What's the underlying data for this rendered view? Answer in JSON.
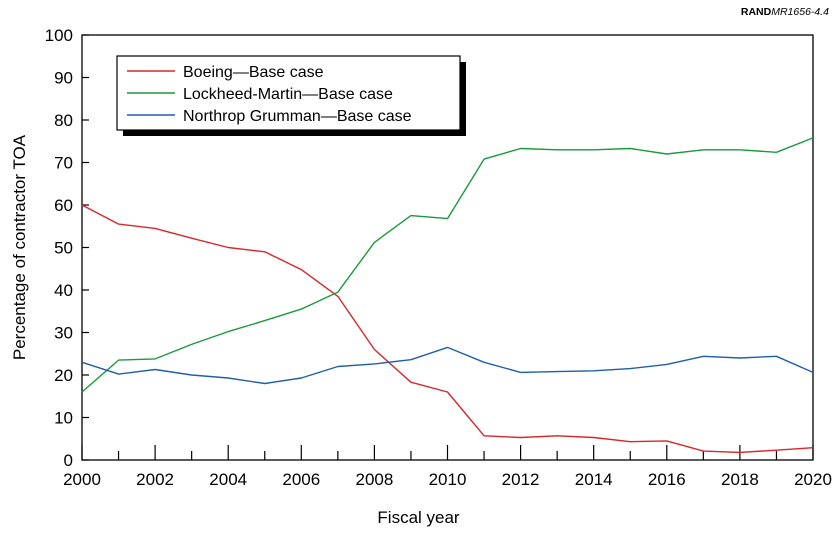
{
  "credit": {
    "org": "RAND",
    "code": "MR1656-4.4"
  },
  "chart_data": {
    "type": "line",
    "title": "",
    "xlabel": "Fiscal year",
    "ylabel": "Percentage of contractor TOA",
    "xlim": [
      2000,
      2020
    ],
    "ylim": [
      0,
      100
    ],
    "x_ticks": [
      2000,
      2002,
      2004,
      2006,
      2008,
      2010,
      2012,
      2014,
      2016,
      2018,
      2020
    ],
    "y_ticks": [
      0,
      10,
      20,
      30,
      40,
      50,
      60,
      70,
      80,
      90,
      100
    ],
    "grid": false,
    "legend_position": "top-left",
    "x": [
      2000,
      2001,
      2002,
      2003,
      2004,
      2005,
      2006,
      2007,
      2008,
      2009,
      2010,
      2011,
      2012,
      2013,
      2014,
      2015,
      2016,
      2017,
      2018,
      2019,
      2020
    ],
    "series": [
      {
        "name": "Boeing—Base case",
        "color": "#d7262c",
        "values": [
          60,
          55.5,
          54.5,
          52.2,
          50,
          49,
          44.8,
          38.5,
          26,
          18.3,
          16,
          5.7,
          5.3,
          5.7,
          5.3,
          4.3,
          4.5,
          2.1,
          1.8,
          2.3,
          2.9
        ]
      },
      {
        "name": "Lockheed-Martin—Base case",
        "color": "#1a9a3c",
        "values": [
          16,
          23.5,
          23.8,
          27.2,
          30.2,
          32.8,
          35.5,
          39.5,
          51.2,
          57.5,
          56.8,
          70.8,
          73.3,
          73,
          73,
          73.3,
          72,
          73,
          73,
          72.4,
          75.8
        ]
      },
      {
        "name": "Northrop Grumman—Base case",
        "color": "#1f5fa8",
        "values": [
          23,
          20.2,
          21.3,
          20,
          19.3,
          18,
          19.3,
          22,
          22.6,
          23.6,
          26.5,
          23,
          20.6,
          20.8,
          21,
          21.5,
          22.5,
          24.4,
          24,
          24.4,
          20.6
        ]
      }
    ]
  }
}
